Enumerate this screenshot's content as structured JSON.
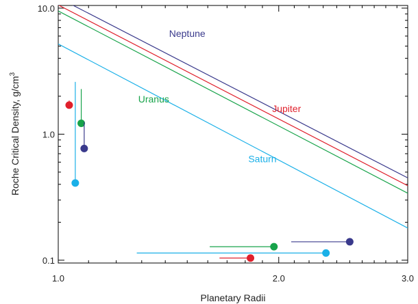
{
  "chart_data": {
    "type": "line",
    "xlabel": "Planetary Radii",
    "ylabel": "Roche Critical Density, g/cm",
    "ylabel_superscript": "3",
    "xscale": "log",
    "yscale": "log",
    "xlim": [
      1.0,
      3.0
    ],
    "ylim": [
      0.095,
      10.5
    ],
    "x_ticks": [
      {
        "value": 1.0,
        "label": "1.0"
      },
      {
        "value": 2.0,
        "label": "2.0"
      },
      {
        "value": 3.0,
        "label": "3.0"
      }
    ],
    "y_ticks": [
      {
        "value": 0.1,
        "label": "0.1"
      },
      {
        "value": 1.0,
        "label": "1.0"
      },
      {
        "value": 10.0,
        "label": "10.0"
      }
    ],
    "grid": false,
    "series": [
      {
        "name": "Neptune",
        "color": "#3a3a8c",
        "x": [
          1.0,
          3.0
        ],
        "y": [
          12.1,
          0.45
        ],
        "label_at": [
          1.5,
          5.9
        ]
      },
      {
        "name": "Jupiter",
        "color": "#e0202c",
        "x": [
          1.0,
          3.0
        ],
        "y": [
          10.6,
          0.39
        ],
        "label_at": [
          2.05,
          1.5
        ]
      },
      {
        "name": "Uranus",
        "color": "#17a34a",
        "x": [
          1.0,
          3.0
        ],
        "y": [
          9.5,
          0.34
        ],
        "label_at": [
          1.35,
          1.78
        ]
      },
      {
        "name": "Saturn",
        "color": "#1ab0e8",
        "x": [
          1.0,
          3.0
        ],
        "y": [
          5.2,
          0.18
        ],
        "label_at": [
          1.9,
          0.6
        ]
      }
    ],
    "points": [
      {
        "series": "Jupiter",
        "x": 1.035,
        "y": 1.7,
        "err_up": 1.85
      },
      {
        "series": "Uranus",
        "x": 1.075,
        "y": 1.22,
        "err_up": 2.28
      },
      {
        "series": "Neptune",
        "x": 1.085,
        "y": 0.77,
        "err_up": 1.25
      },
      {
        "series": "Saturn",
        "x": 1.055,
        "y": 0.41,
        "err_up": 2.6
      },
      {
        "series": "Neptune",
        "x": 2.5,
        "y": 0.14,
        "err_left": 2.08
      },
      {
        "series": "Uranus",
        "x": 1.97,
        "y": 0.128,
        "err_left": 1.61
      },
      {
        "series": "Saturn",
        "x": 2.32,
        "y": 0.114,
        "err_left": 1.28
      },
      {
        "series": "Jupiter",
        "x": 1.83,
        "y": 0.104,
        "err_left": 1.66
      }
    ]
  }
}
